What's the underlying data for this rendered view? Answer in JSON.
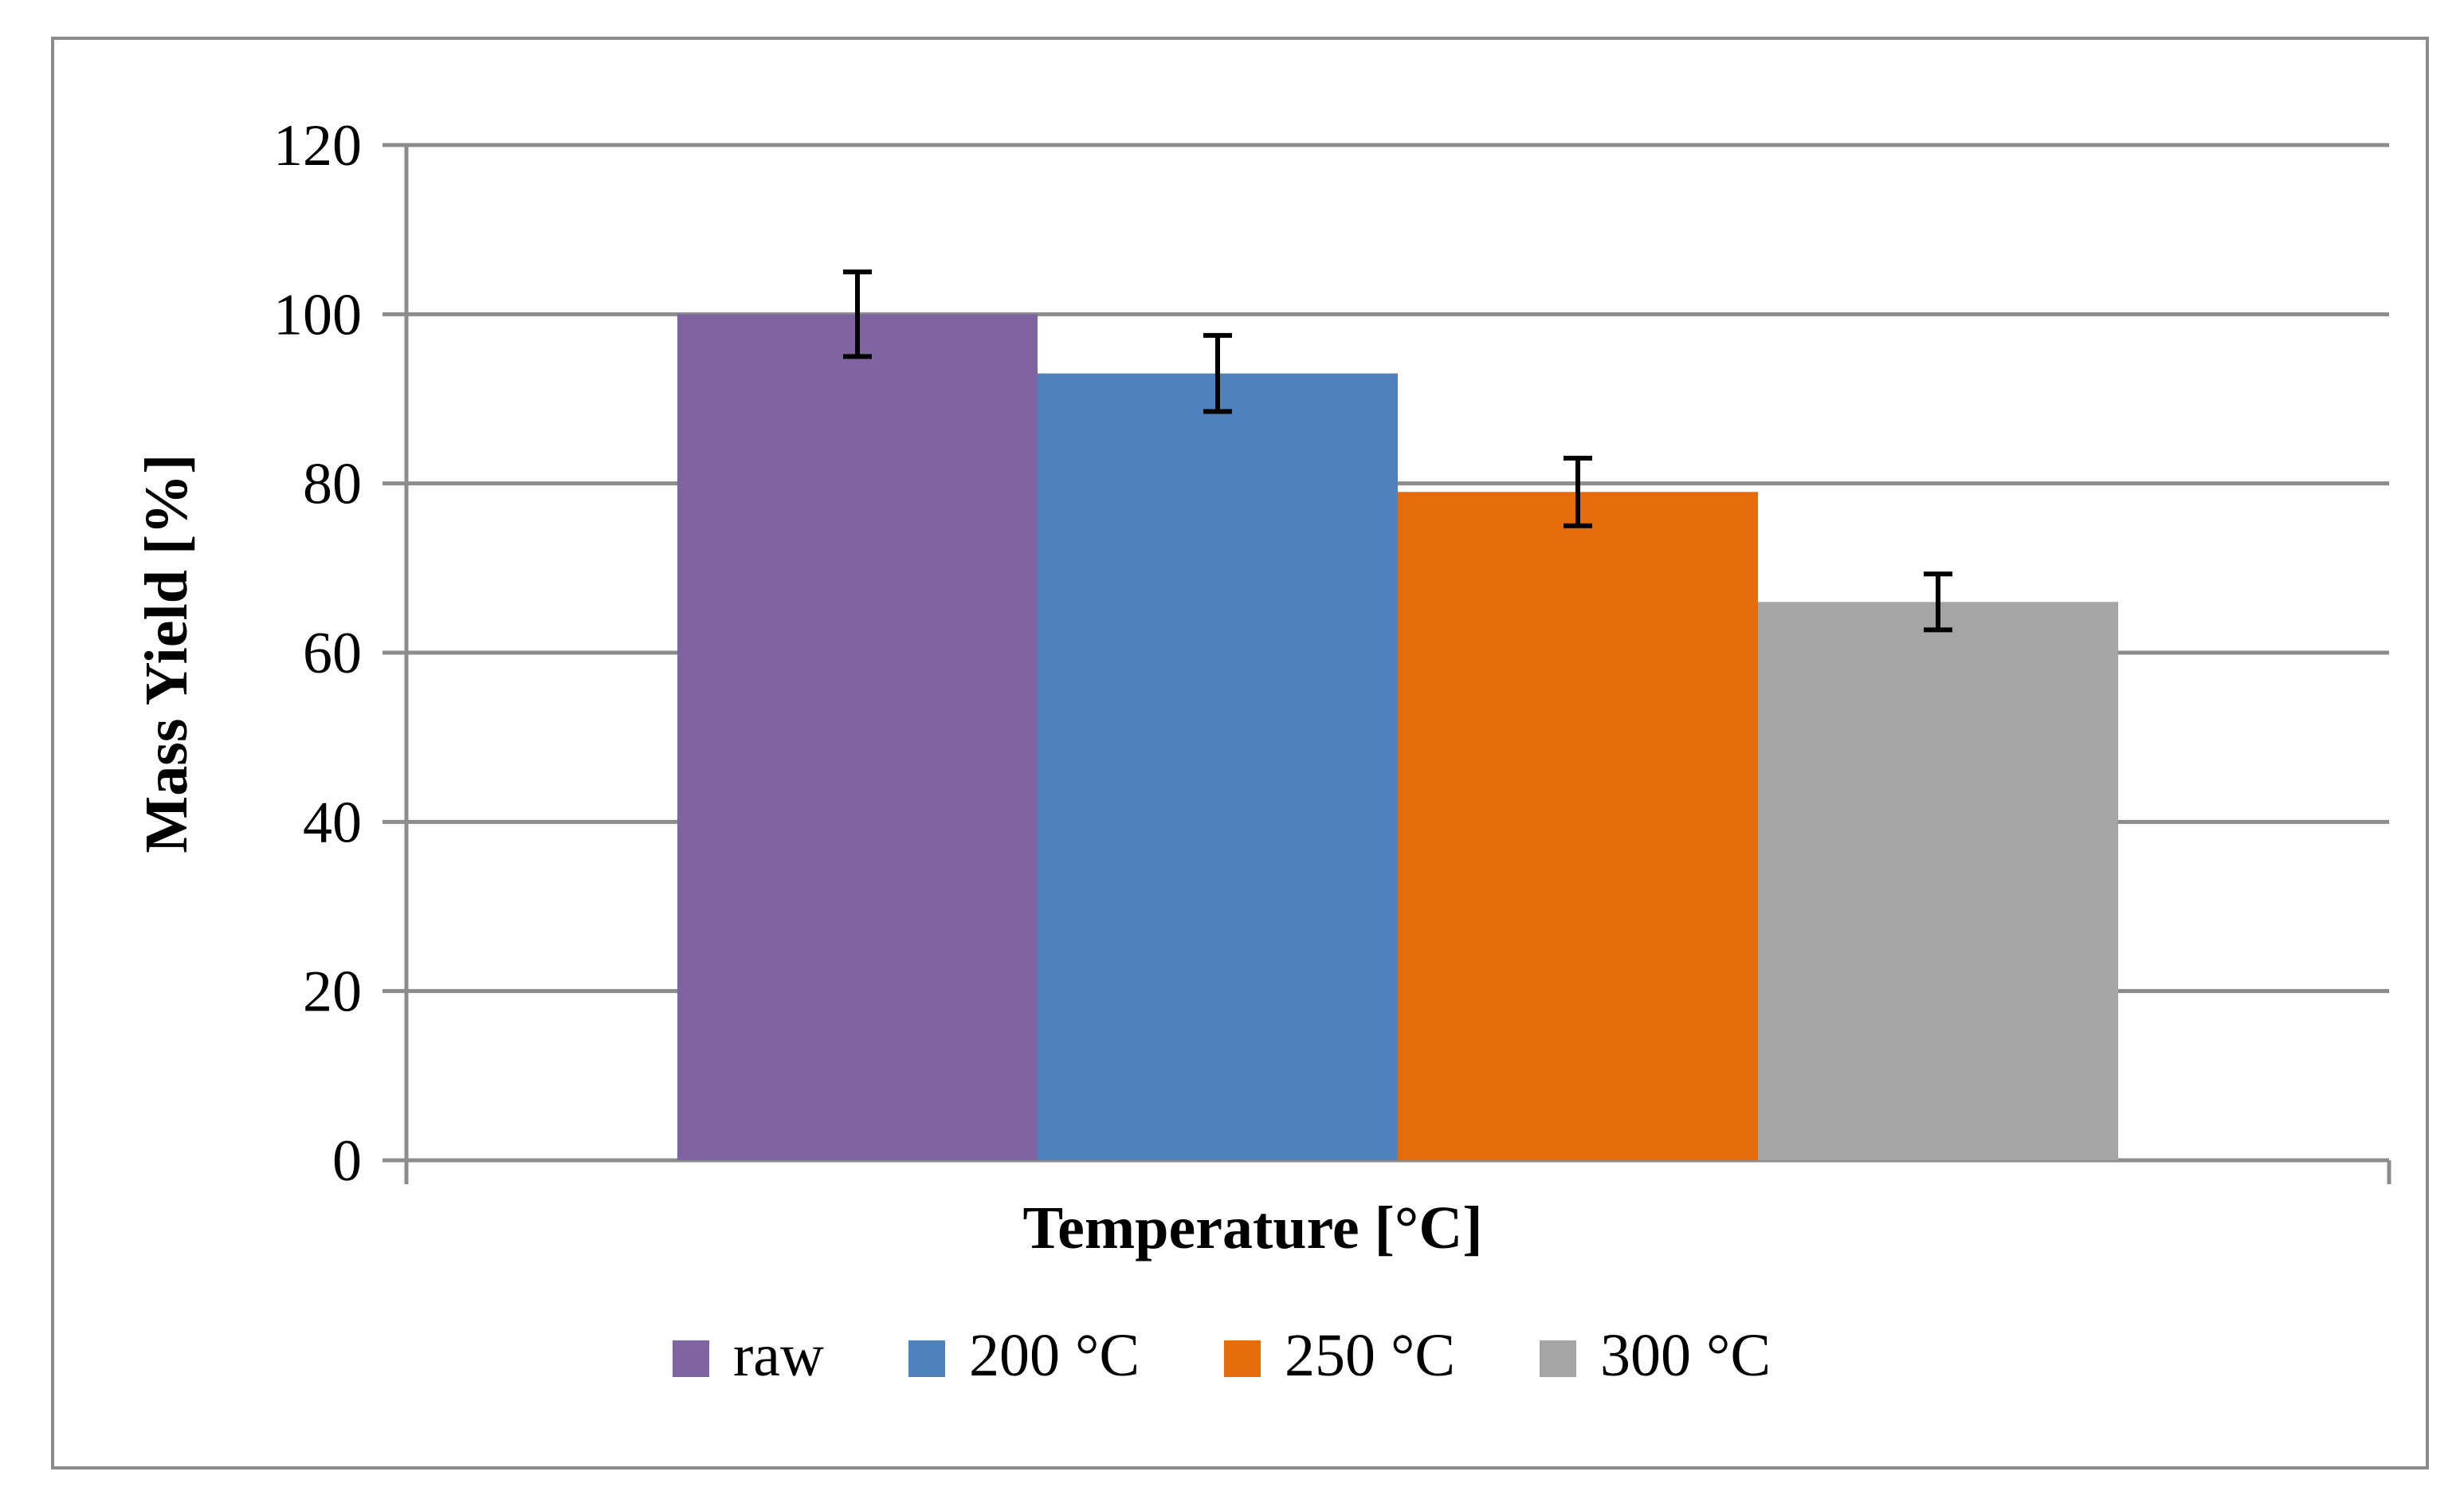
{
  "chart_data": {
    "type": "bar",
    "title": "",
    "xlabel": "Temperature [°C]",
    "ylabel": "Mass Yield [%]",
    "ylim": [
      0,
      120
    ],
    "yticks": [
      0,
      20,
      40,
      60,
      80,
      100,
      120
    ],
    "ytick_labels": [
      "0",
      "20",
      "40",
      "60",
      "80",
      "100",
      "120"
    ],
    "grid": true,
    "legend_position": "bottom",
    "series": [
      {
        "name": "raw",
        "value": 100,
        "error": 5,
        "color": "#8064A2"
      },
      {
        "name": "200 °C",
        "value": 93,
        "error": 4.5,
        "color": "#4F81BD"
      },
      {
        "name": "250 °C",
        "value": 79,
        "error": 4,
        "color": "#E46C0A"
      },
      {
        "name": "300 °C",
        "value": 66,
        "error": 3.3,
        "color": "#A5A5A5"
      }
    ],
    "colors": {
      "grid": "#8c8c8c",
      "axis": "#8c8c8c",
      "errorbar": "#000000",
      "text": "#000000"
    }
  }
}
